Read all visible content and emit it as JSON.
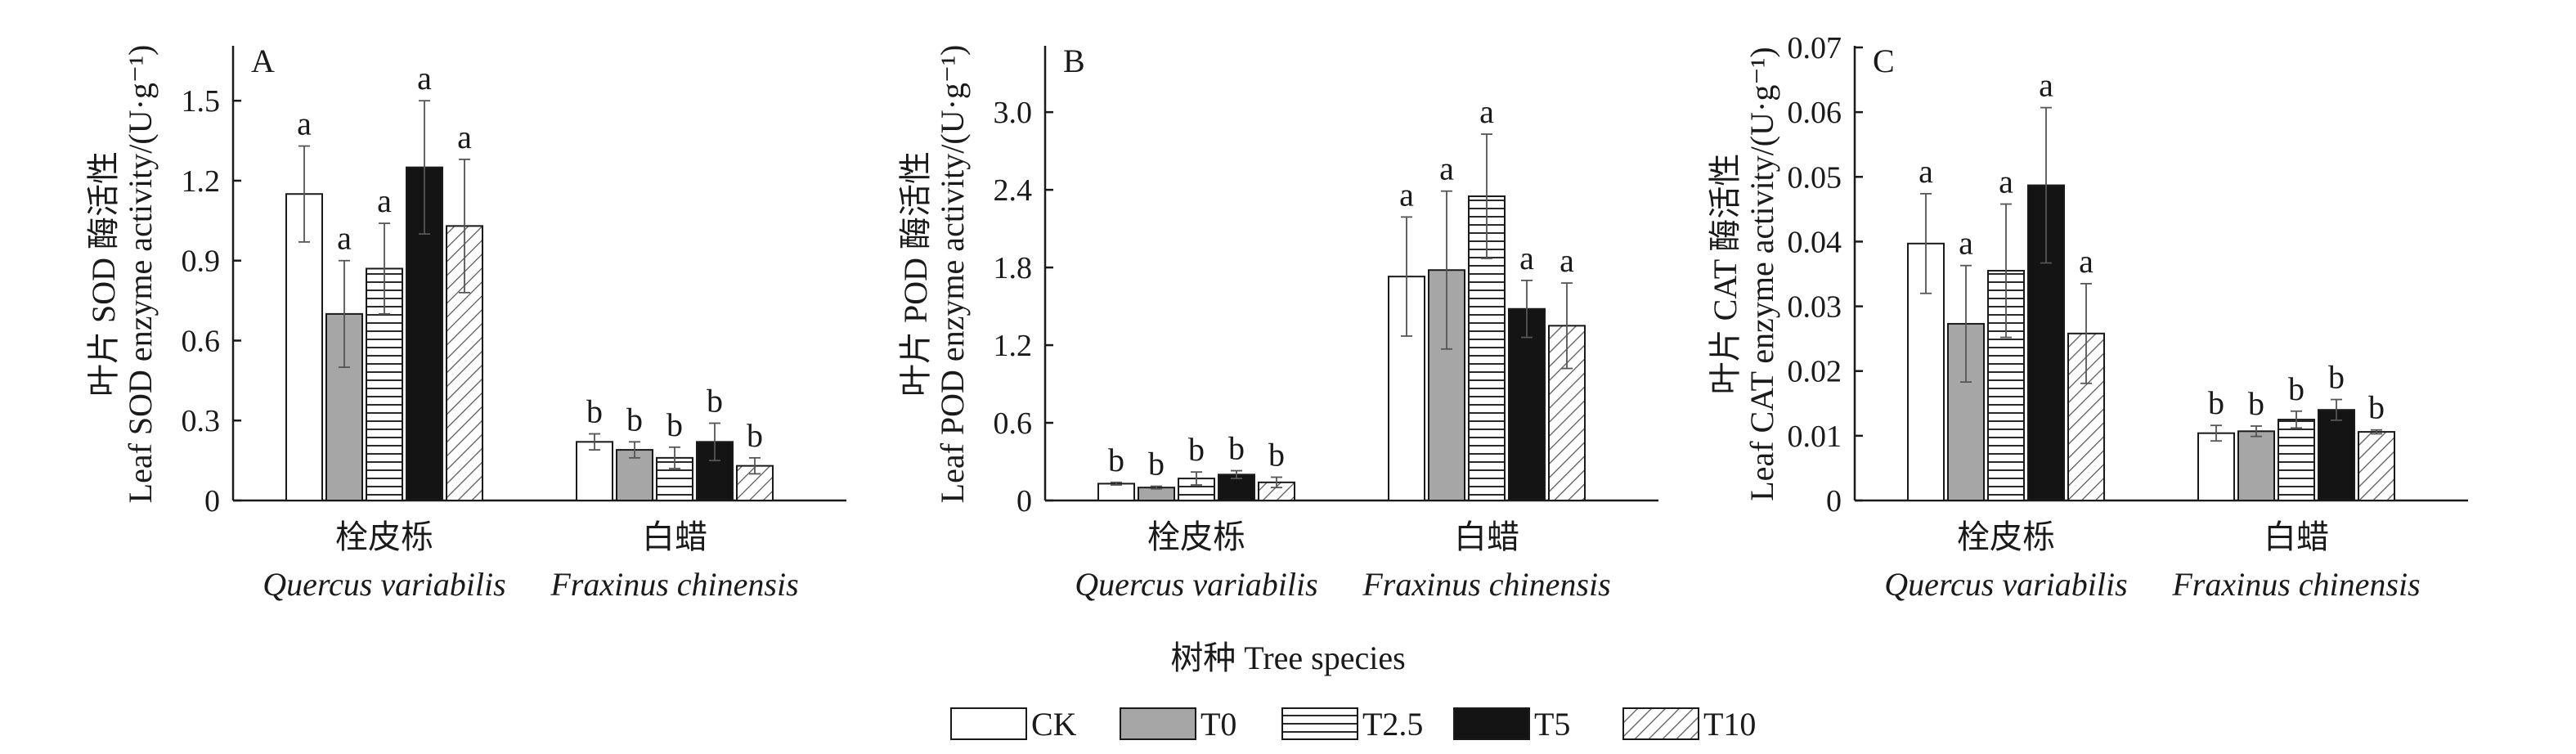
{
  "figure": {
    "x_axis_title": "树种 Tree species"
  },
  "legend": {
    "items": [
      {
        "label": "CK",
        "pattern": "white"
      },
      {
        "label": "T0",
        "pattern": "gray"
      },
      {
        "label": "T2.5",
        "pattern": "hlines"
      },
      {
        "label": "T5",
        "pattern": "black"
      },
      {
        "label": "T10",
        "pattern": "diag"
      }
    ]
  },
  "colors": {
    "bar_edge": "#1a1a1a",
    "gray_fill": "#a6a6a6",
    "black_fill": "#141414",
    "axis": "#1a1a1a"
  },
  "chart_data": [
    {
      "type": "bar",
      "panel": "A",
      "ylabel_zh": "叶片 SOD 酶活性",
      "ylabel_en": "Leaf SOD enzyme activity/(U·g⁻¹)",
      "ylim": [
        0,
        1.7
      ],
      "yticks": [
        0,
        0.3,
        0.6,
        0.9,
        1.2,
        1.5
      ],
      "ytick_labels": [
        "0",
        "0.3",
        "0.6",
        "0.9",
        "1.2",
        "1.5"
      ],
      "categories": [
        {
          "zh": "栓皮栎",
          "en": "Quercus variabilis"
        },
        {
          "zh": "白蜡",
          "en": "Fraxinus chinensis"
        }
      ],
      "series": [
        {
          "name": "CK",
          "values": [
            1.15,
            0.22
          ],
          "errors": [
            0.18,
            0.03
          ],
          "letters": [
            "a",
            "b"
          ]
        },
        {
          "name": "T0",
          "values": [
            0.7,
            0.19
          ],
          "errors": [
            0.2,
            0.03
          ],
          "letters": [
            "a",
            "b"
          ]
        },
        {
          "name": "T2.5",
          "values": [
            0.87,
            0.16
          ],
          "errors": [
            0.17,
            0.04
          ],
          "letters": [
            "a",
            "b"
          ]
        },
        {
          "name": "T5",
          "values": [
            1.25,
            0.22
          ],
          "errors": [
            0.25,
            0.07
          ],
          "letters": [
            "a",
            "b"
          ]
        },
        {
          "name": "T10",
          "values": [
            1.03,
            0.13
          ],
          "errors": [
            0.25,
            0.03
          ],
          "letters": [
            "a",
            "b"
          ]
        }
      ]
    },
    {
      "type": "bar",
      "panel": "B",
      "ylabel_zh": "叶片 POD 酶活性",
      "ylabel_en": "Leaf POD enzyme activity/(U·g⁻¹)",
      "ylim": [
        0,
        3.5
      ],
      "yticks": [
        0,
        0.6,
        1.2,
        1.8,
        2.4,
        3.0
      ],
      "ytick_labels": [
        "0",
        "0.6",
        "1.2",
        "1.8",
        "2.4",
        "3.0"
      ],
      "categories": [
        {
          "zh": "栓皮栎",
          "en": "Quercus variabilis"
        },
        {
          "zh": "白蜡",
          "en": "Fraxinus chinensis"
        }
      ],
      "series": [
        {
          "name": "CK",
          "values": [
            0.13,
            1.73
          ],
          "errors": [
            0.01,
            0.46
          ],
          "letters": [
            "b",
            "a"
          ]
        },
        {
          "name": "T0",
          "values": [
            0.1,
            1.78
          ],
          "errors": [
            0.01,
            0.61
          ],
          "letters": [
            "b",
            "a"
          ]
        },
        {
          "name": "T2.5",
          "values": [
            0.17,
            2.35
          ],
          "errors": [
            0.05,
            0.48
          ],
          "letters": [
            "b",
            "a"
          ]
        },
        {
          "name": "T5",
          "values": [
            0.2,
            1.48
          ],
          "errors": [
            0.03,
            0.22
          ],
          "letters": [
            "b",
            "a"
          ]
        },
        {
          "name": "T10",
          "values": [
            0.14,
            1.35
          ],
          "errors": [
            0.04,
            0.33
          ],
          "letters": [
            "b",
            "a"
          ]
        }
      ]
    },
    {
      "type": "bar",
      "panel": "C",
      "ylabel_zh": "叶片 CAT 酶活性",
      "ylabel_en": "Leaf CAT enzyme activity/(U·g⁻¹)",
      "ylim": [
        0,
        0.07
      ],
      "yticks": [
        0,
        0.01,
        0.02,
        0.03,
        0.04,
        0.05,
        0.06,
        0.07
      ],
      "ytick_labels": [
        "0",
        "0.01",
        "0.02",
        "0.03",
        "0.04",
        "0.05",
        "0.06",
        "0.07"
      ],
      "categories": [
        {
          "zh": "栓皮栎",
          "en": "Quercus variabilis"
        },
        {
          "zh": "白蜡",
          "en": "Fraxinus chinensis"
        }
      ],
      "series": [
        {
          "name": "CK",
          "values": [
            0.0397,
            0.0104
          ],
          "errors": [
            0.0077,
            0.0012
          ],
          "letters": [
            "a",
            "b"
          ]
        },
        {
          "name": "T0",
          "values": [
            0.0273,
            0.0107
          ],
          "errors": [
            0.009,
            0.0008
          ],
          "letters": [
            "a",
            "b"
          ]
        },
        {
          "name": "T2.5",
          "values": [
            0.0355,
            0.0125
          ],
          "errors": [
            0.0103,
            0.0013
          ],
          "letters": [
            "a",
            "b"
          ]
        },
        {
          "name": "T5",
          "values": [
            0.0487,
            0.014
          ],
          "errors": [
            0.012,
            0.0016
          ],
          "letters": [
            "a",
            "b"
          ]
        },
        {
          "name": "T10",
          "values": [
            0.0258,
            0.0106
          ],
          "errors": [
            0.0077,
            0.0003
          ],
          "letters": [
            "a",
            "b"
          ]
        }
      ]
    }
  ]
}
